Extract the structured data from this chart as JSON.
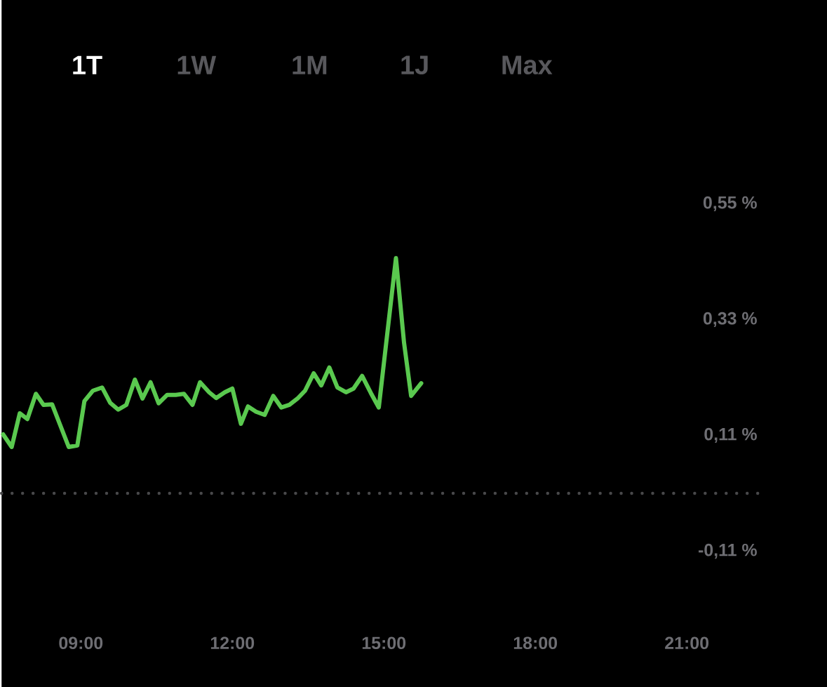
{
  "chart_data": {
    "type": "line",
    "annotations": [
      "1T",
      "1W",
      "1M",
      "1J",
      "Max"
    ],
    "xlim": [
      7.43,
      22.5
    ],
    "ylim": [
      -0.11,
      0.55
    ],
    "xticks": [
      {
        "value": 9,
        "label": "09:00"
      },
      {
        "value": 12,
        "label": "12:00"
      },
      {
        "value": 15,
        "label": "15:00"
      },
      {
        "value": 18,
        "label": "18:00"
      },
      {
        "value": 21,
        "label": "21:00"
      }
    ],
    "yticks": [
      {
        "value": -0.11,
        "label": "-0,11 %"
      },
      {
        "value": 0.11,
        "label": "0,11 %"
      },
      {
        "value": 0.33,
        "label": "0,33 %"
      },
      {
        "value": 0.55,
        "label": "0,55 %"
      }
    ],
    "ref_lines": [
      {
        "axis": "y",
        "value": 0,
        "color": "#48484a",
        "line_style": "dotted"
      }
    ],
    "marker": "none",
    "x": [
      7.46,
      7.63,
      7.79,
      7.94,
      8.11,
      8.26,
      8.43,
      8.76,
      8.93,
      9.07,
      9.24,
      9.42,
      9.58,
      9.74,
      9.9,
      10.07,
      10.22,
      10.38,
      10.54,
      10.71,
      10.88,
      11.04,
      11.21,
      11.36,
      11.54,
      11.68,
      11.85,
      12.0,
      12.17,
      12.31,
      12.47,
      12.64,
      12.81,
      12.97,
      13.13,
      13.29,
      13.44,
      13.61,
      13.76,
      13.92,
      14.08,
      14.25,
      14.4,
      14.57,
      14.74,
      14.9,
      15.24,
      15.4,
      15.54,
      15.74
    ],
    "series": [
      {
        "color": "#5ac94f",
        "values": [
          0.112,
          0.088,
          0.152,
          0.141,
          0.189,
          0.168,
          0.169,
          0.088,
          0.091,
          0.175,
          0.195,
          0.201,
          0.172,
          0.159,
          0.168,
          0.216,
          0.18,
          0.211,
          0.171,
          0.187,
          0.187,
          0.189,
          0.168,
          0.211,
          0.192,
          0.181,
          0.192,
          0.199,
          0.132,
          0.165,
          0.155,
          0.149,
          0.185,
          0.163,
          0.168,
          0.18,
          0.195,
          0.228,
          0.205,
          0.239,
          0.201,
          0.192,
          0.199,
          0.223,
          0.191,
          0.163,
          0.447,
          0.286,
          0.185,
          0.209
        ]
      }
    ]
  }
}
